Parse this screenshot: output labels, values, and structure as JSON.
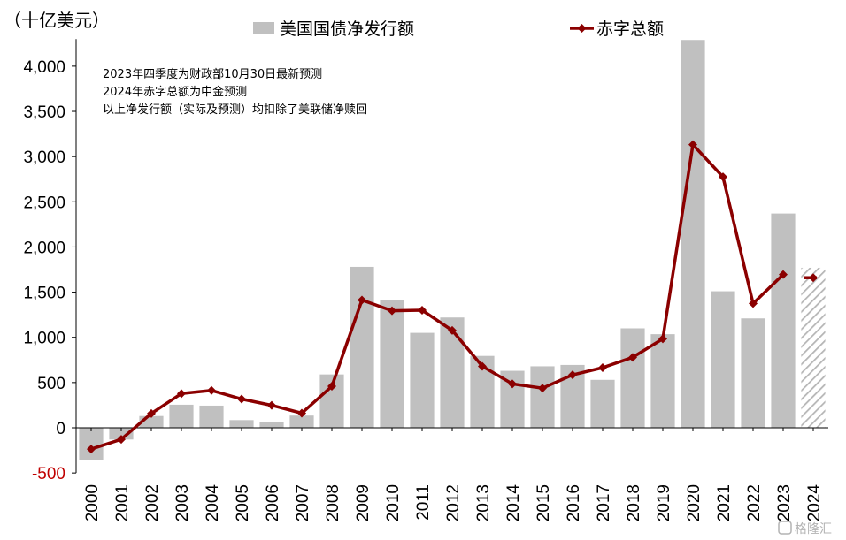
{
  "chart_data": {
    "type": "bar",
    "unit_label": "（十亿美元）",
    "categories": [
      "2000",
      "2001",
      "2002",
      "2003",
      "2004",
      "2005",
      "2006",
      "2007",
      "2008",
      "2009",
      "2010",
      "2011",
      "2012",
      "2013",
      "2014",
      "2015",
      "2016",
      "2017",
      "2018",
      "2019",
      "2020",
      "2021",
      "2022",
      "2023",
      "2024"
    ],
    "ylim": [
      -500,
      4300
    ],
    "yticks": [
      -500,
      0,
      500,
      1000,
      1500,
      2000,
      2500,
      3000,
      3500,
      4000
    ],
    "ytick_labels": [
      "-500",
      "0",
      "500",
      "1,000",
      "1,500",
      "2,000",
      "2,500",
      "3,000",
      "3,500",
      "4,000"
    ],
    "series": [
      {
        "name": "美国国债净发行额",
        "type": "bar",
        "color": "#c0c0c0",
        "values": [
          -360,
          -130,
          130,
          255,
          245,
          85,
          65,
          135,
          590,
          1780,
          1410,
          1050,
          1220,
          795,
          630,
          680,
          695,
          530,
          1100,
          1035,
          4290,
          1510,
          1210,
          2370,
          1770
        ],
        "hatched_categories": [
          "2024"
        ]
      },
      {
        "name": "赤字总额",
        "type": "line",
        "color": "#8b0000",
        "values": [
          -236,
          -128,
          158,
          378,
          413,
          318,
          248,
          161,
          459,
          1413,
          1294,
          1300,
          1077,
          680,
          485,
          438,
          585,
          665,
          779,
          984,
          3132,
          2775,
          1375,
          1695,
          1660
        ],
        "break_before": [
          "2024"
        ]
      }
    ],
    "annotations": [
      "2023年四季度为财政部10月30日最新预测",
      "2024年赤字总额为中金预测",
      "以上净发行额（实际及预测）均扣除了美联储净赎回"
    ],
    "legend_placement": "top",
    "grid": false,
    "watermark": "格隆汇"
  }
}
